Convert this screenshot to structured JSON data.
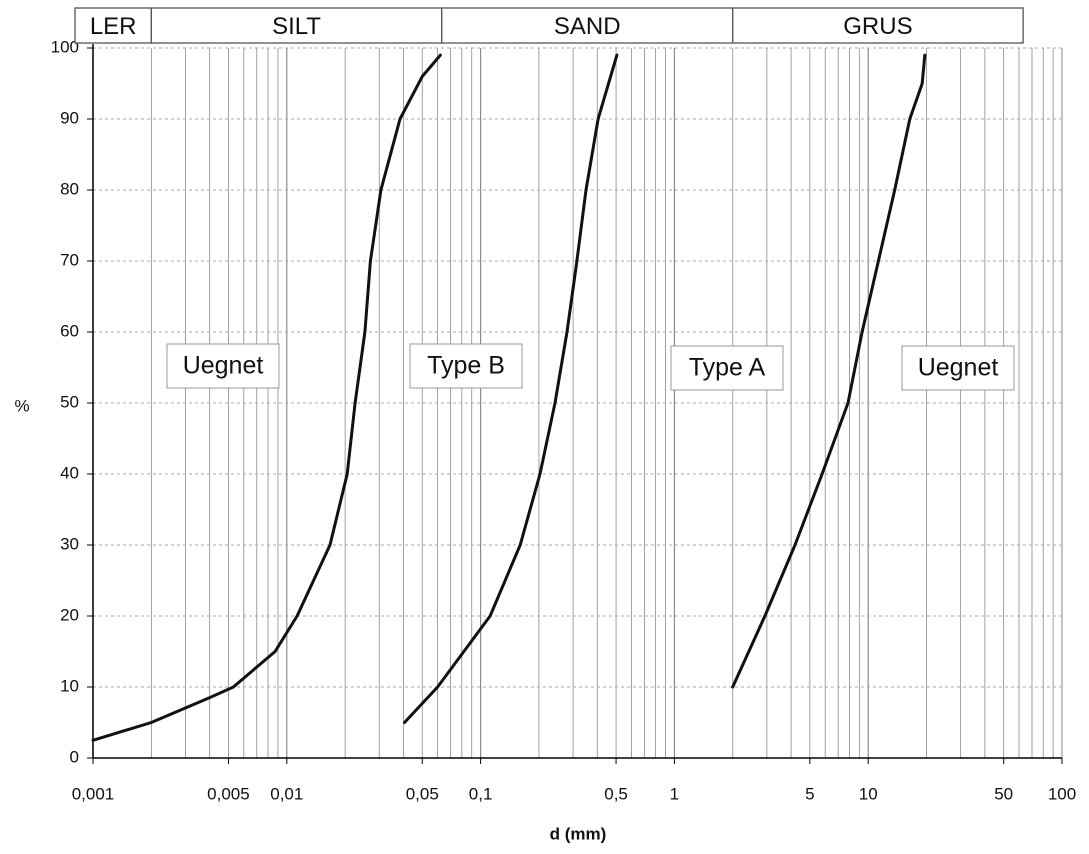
{
  "chart_data": {
    "type": "line",
    "x_label": "d (mm)",
    "y_label": "%",
    "log_x": true,
    "grid": true,
    "xlim": [
      0.001,
      100
    ],
    "ylim": [
      0,
      100
    ],
    "xticks": [
      {
        "value": 0.001,
        "label": "0,001"
      },
      {
        "value": 0.005,
        "label": "0,005"
      },
      {
        "value": 0.01,
        "label": "0,01"
      },
      {
        "value": 0.05,
        "label": "0,05"
      },
      {
        "value": 0.1,
        "label": "0,1"
      },
      {
        "value": 0.5,
        "label": "0,5"
      },
      1,
      5,
      10,
      50,
      100
    ],
    "yticks": [
      0,
      10,
      20,
      30,
      40,
      50,
      60,
      70,
      80,
      90,
      100
    ],
    "bands": {
      "labels": [
        "LER",
        "SILT",
        "SAND",
        "GRUS"
      ],
      "edges": [
        0.002,
        0.063,
        2,
        63
      ]
    },
    "annotations": [
      "Uegnet",
      "Type B",
      "Type A",
      "Uegnet"
    ],
    "series": [
      {
        "color": "#111111",
        "x": [
          0.001,
          0.002,
          0.004,
          0.0053,
          0.0087,
          0.0113,
          0.0167,
          0.0205,
          0.0225,
          0.0253,
          0.027,
          0.0306,
          0.0384,
          0.05,
          0.062
        ],
        "values": [
          2.5,
          5,
          8.5,
          10,
          15,
          20,
          30,
          40,
          50,
          60,
          70,
          80,
          90,
          96,
          99
        ]
      },
      {
        "color": "#111111",
        "x": [
          0.0405,
          0.06,
          0.112,
          0.16,
          0.2025,
          0.242,
          0.279,
          0.314,
          0.35,
          0.404,
          0.505
        ],
        "values": [
          5,
          10,
          20,
          30,
          40,
          50,
          60,
          70,
          80,
          90,
          99
        ]
      },
      {
        "color": "#111111",
        "x": [
          2.0,
          2.93,
          4.19,
          5.78,
          7.87,
          9.3,
          13.7,
          16.4,
          19,
          19.6
        ],
        "values": [
          10,
          20,
          30,
          40,
          50,
          60,
          80,
          90,
          95,
          99
        ]
      }
    ]
  }
}
